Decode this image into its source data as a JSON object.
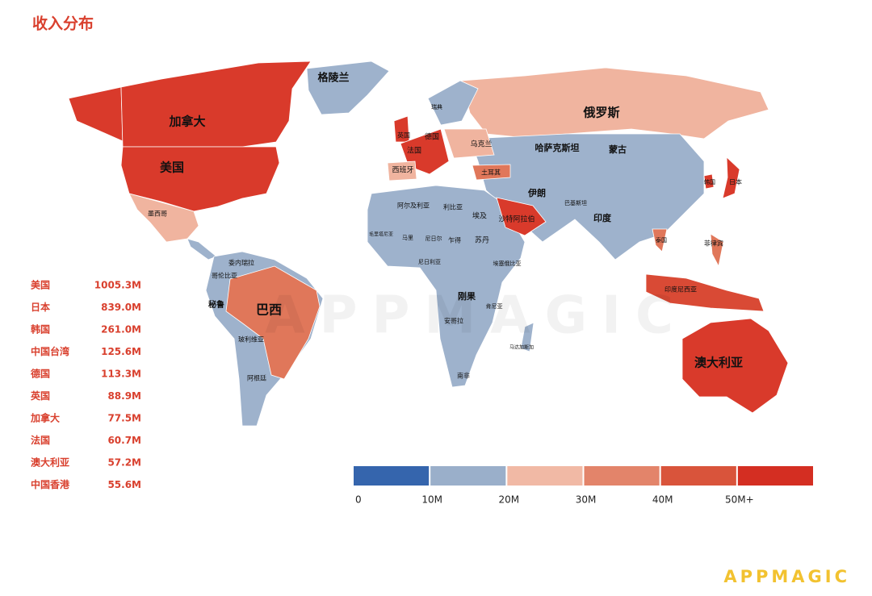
{
  "title": "收入分布",
  "map": {
    "labels": [
      "格陵兰",
      "加拿大",
      "美国",
      "俄罗斯",
      "瑞典",
      "英国",
      "德国",
      "法国",
      "乌克兰",
      "哈萨克斯坦",
      "蒙古",
      "西班牙",
      "土耳其",
      "伊朗",
      "韩国",
      "日本",
      "墨西哥",
      "阿尔及利亚",
      "利比亚",
      "埃及",
      "沙特阿拉伯",
      "巴基斯坦",
      "印度",
      "毛里塔尼亚",
      "马里",
      "尼日尔",
      "乍得",
      "苏丹",
      "泰国",
      "菲律宾",
      "委内瑞拉",
      "哥伦比亚",
      "尼日利亚",
      "埃塞俄比亚",
      "印度尼西亚",
      "巴西",
      "秘鲁",
      "刚果",
      "肯尼亚",
      "安哥拉",
      "玻利维亚",
      "马达加斯加",
      "阿根廷",
      "南非",
      "澳大利亚"
    ],
    "watermark": "APPMAGIC"
  },
  "ranking": [
    {
      "name": "美国",
      "value": "1005.3M"
    },
    {
      "name": "日本",
      "value": "839.0M"
    },
    {
      "name": "韩国",
      "value": "261.0M"
    },
    {
      "name": "中国台湾",
      "value": "125.6M"
    },
    {
      "name": "德国",
      "value": "113.3M"
    },
    {
      "name": "英国",
      "value": "88.9M"
    },
    {
      "name": "加拿大",
      "value": "77.5M"
    },
    {
      "name": "法国",
      "value": "60.7M"
    },
    {
      "name": "澳大利亚",
      "value": "57.2M"
    },
    {
      "name": "中国香港",
      "value": "55.6M"
    }
  ],
  "legend": {
    "colors": [
      "#3565ad",
      "#9aafca",
      "#f1b9a5",
      "#e3846a",
      "#d9543b",
      "#d42e22"
    ],
    "labels": [
      "0",
      "10M",
      "20M",
      "30M",
      "40M",
      "50M+"
    ]
  },
  "logo": "APPMAGIC"
}
